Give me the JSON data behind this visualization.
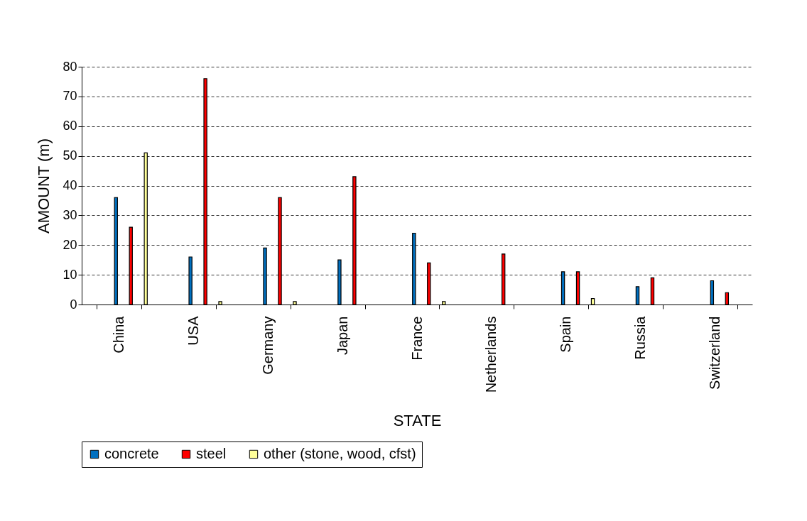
{
  "chart_data": {
    "type": "bar",
    "xlabel": "STATE",
    "ylabel": "AMOUNT (m)",
    "categories": [
      "China",
      "USA",
      "Germany",
      "Japan",
      "France",
      "Netherlands",
      "Spain",
      "Russia",
      "Switzerland"
    ],
    "series": [
      {
        "name": "concrete",
        "color": "#0070c0",
        "values": [
          36,
          16,
          19,
          15,
          24,
          null,
          11,
          6,
          8
        ]
      },
      {
        "name": "steel",
        "color": "#ff0000",
        "values": [
          26,
          76,
          36,
          43,
          14,
          17,
          11,
          9,
          4
        ]
      },
      {
        "name": "other (stone, wood, cfst)",
        "color": "#ffff99",
        "values": [
          51,
          1,
          1,
          null,
          1,
          null,
          2,
          null,
          null
        ]
      }
    ],
    "ylim": [
      0,
      80
    ],
    "yticks": [
      0,
      10,
      20,
      30,
      40,
      50,
      60,
      70,
      80
    ],
    "grid": "y",
    "legend": "bottom"
  }
}
